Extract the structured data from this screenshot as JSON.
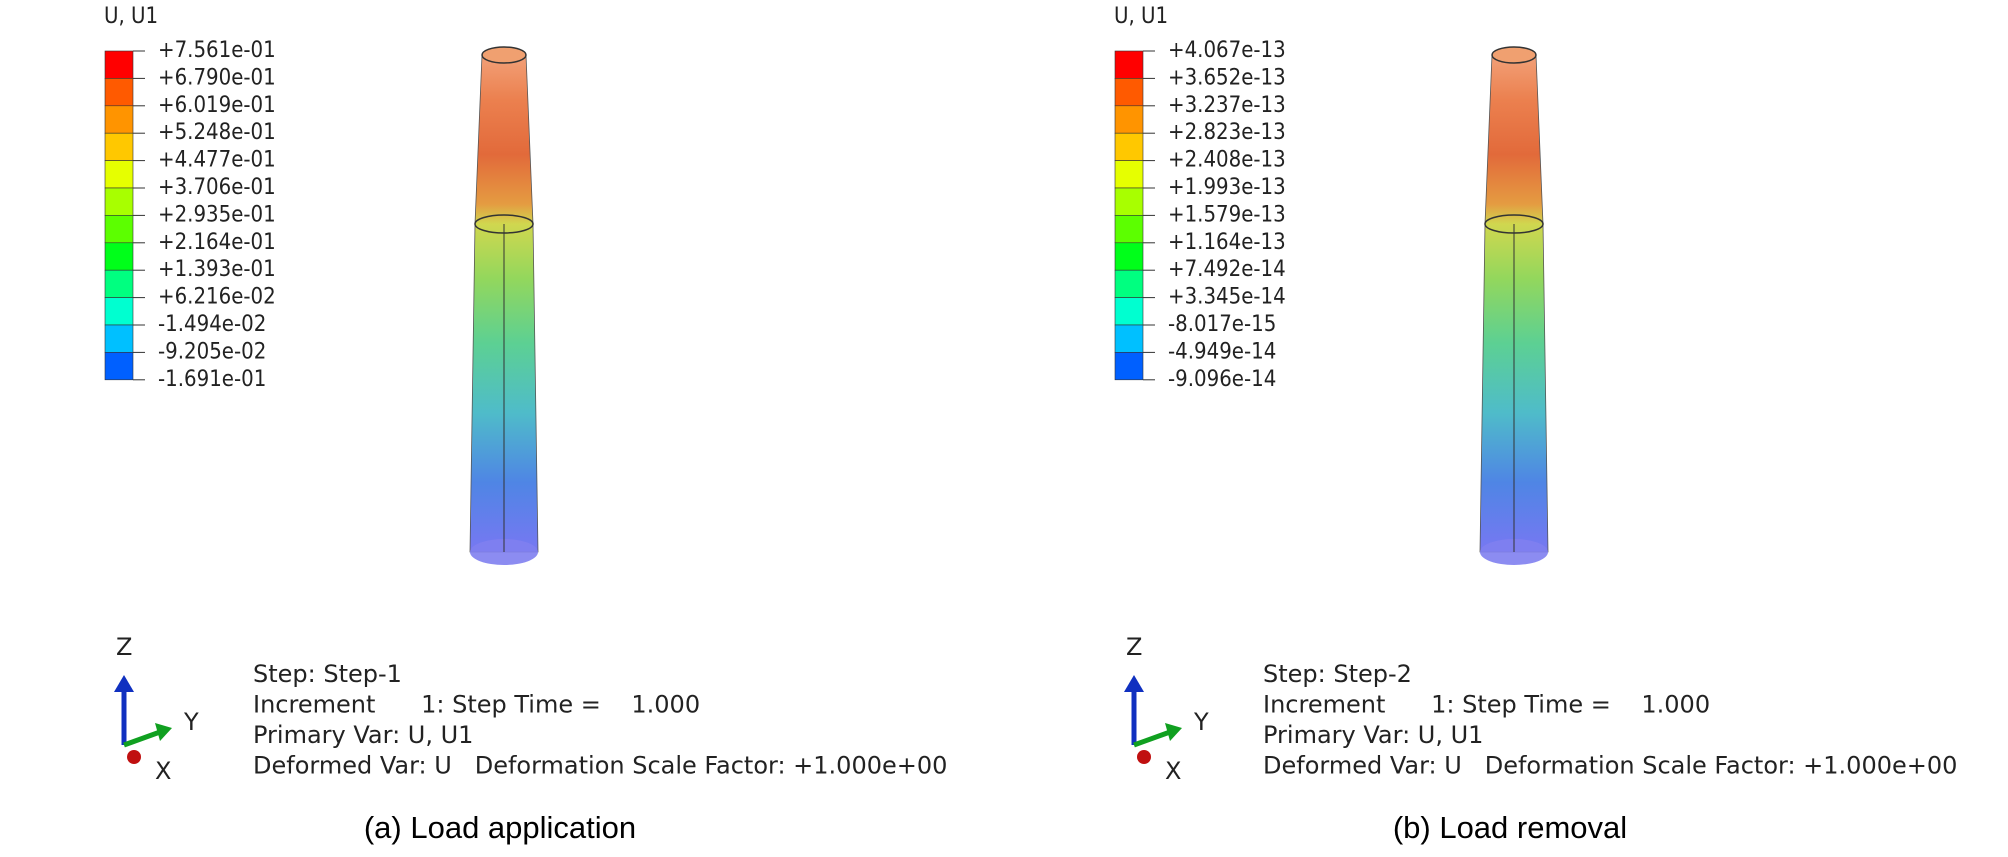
{
  "legend_colors": [
    "#ff0000",
    "#ff5a00",
    "#ff9400",
    "#ffc800",
    "#e6ff00",
    "#a8ff00",
    "#5cff00",
    "#00ff1a",
    "#00ff80",
    "#00ffd0",
    "#00c0ff",
    "#0060ff",
    "#0000ff"
  ],
  "panels": [
    {
      "legend_title": "U, U1",
      "legend_labels": [
        "+7.561e-01",
        "+6.790e-01",
        "+6.019e-01",
        "+5.248e-01",
        "+4.477e-01",
        "+3.706e-01",
        "+2.935e-01",
        "+2.164e-01",
        "+1.393e-01",
        "+6.216e-02",
        "-1.494e-02",
        "-9.205e-02",
        "-1.691e-01"
      ],
      "axes": {
        "z": "Z",
        "y": "Y",
        "x": "X"
      },
      "info": [
        "Step: Step-1",
        "Increment      1: Step Time =    1.000",
        "Primary Var: U, U1",
        "Deformed Var: U   Deformation Scale Factor: +1.000e+00"
      ],
      "caption": "(a) Load application"
    },
    {
      "legend_title": "U, U1",
      "legend_labels": [
        "+4.067e-13",
        "+3.652e-13",
        "+3.237e-13",
        "+2.823e-13",
        "+2.408e-13",
        "+1.993e-13",
        "+1.579e-13",
        "+1.164e-13",
        "+7.492e-14",
        "+3.345e-14",
        "-8.017e-15",
        "-4.949e-14",
        "-9.096e-14"
      ],
      "axes": {
        "z": "Z",
        "y": "Y",
        "x": "X"
      },
      "info": [
        "Step: Step-2",
        "Increment      1: Step Time =    1.000",
        "Primary Var: U, U1",
        "Deformed Var: U   Deformation Scale Factor: +1.000e+00"
      ],
      "caption": "(b) Load removal"
    }
  ]
}
